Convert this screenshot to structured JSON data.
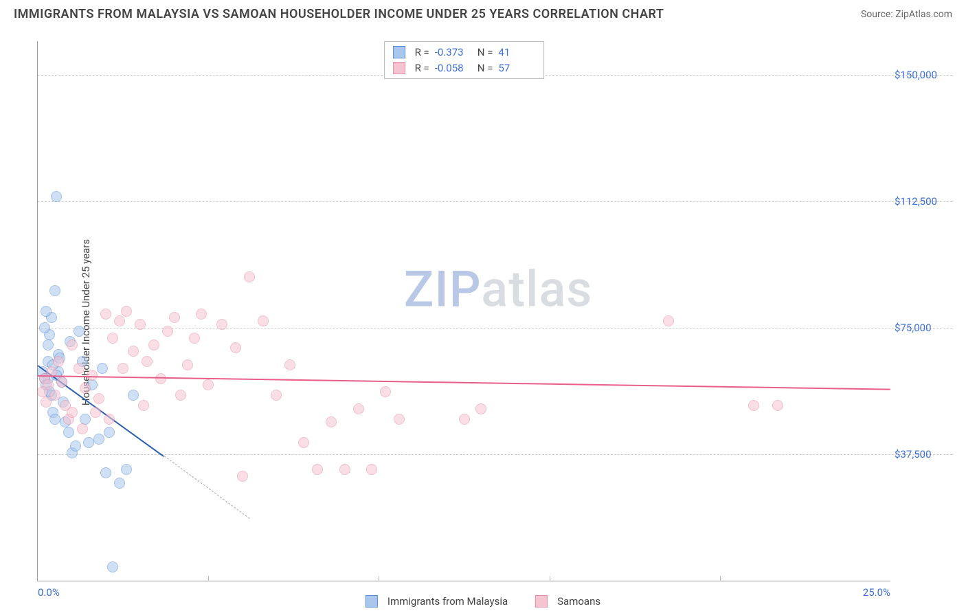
{
  "title": "IMMIGRANTS FROM MALAYSIA VS SAMOAN HOUSEHOLDER INCOME UNDER 25 YEARS CORRELATION CHART",
  "source": "Source: ZipAtlas.com",
  "ylabel": "Householder Income Under 25 years",
  "watermark": {
    "part1": "ZIP",
    "part2": "atlas"
  },
  "chart": {
    "type": "scatter",
    "background_color": "#ffffff",
    "grid_color": "#cccccc",
    "axis_color": "#999999",
    "label_color": "#3b6fd6",
    "title_fontsize": 18,
    "label_fontsize": 15,
    "xlim": [
      0,
      25
    ],
    "ylim": [
      0,
      160000
    ],
    "x_tick_labels": {
      "0": "0.0%",
      "25": "25.0%"
    },
    "x_minor_ticks": [
      5,
      10,
      15,
      20
    ],
    "y_ticks": [
      37500,
      75000,
      112500,
      150000
    ],
    "y_tick_labels": [
      "$37,500",
      "$75,000",
      "$112,500",
      "$150,000"
    ],
    "marker_radius": 8,
    "marker_opacity": 0.55,
    "series": [
      {
        "name": "Immigrants from Malaysia",
        "color_fill": "#a9c6ec",
        "color_stroke": "#5b8fd6",
        "r": -0.373,
        "n": 41,
        "trend": {
          "x1": 0,
          "y1": 64000,
          "x2": 3.7,
          "y2": 37000,
          "width": 2,
          "color": "#2a5db0",
          "dash_ext": {
            "x1": 3.7,
            "y1": 37000,
            "x2": 6.2,
            "y2": 18500
          }
        },
        "points": [
          [
            0.15,
            62000
          ],
          [
            0.2,
            60000
          ],
          [
            0.25,
            58000
          ],
          [
            0.3,
            65000
          ],
          [
            0.3,
            70000
          ],
          [
            0.35,
            73000
          ],
          [
            0.4,
            78000
          ],
          [
            0.4,
            55000
          ],
          [
            0.45,
            50000
          ],
          [
            0.5,
            48000
          ],
          [
            0.5,
            86000
          ],
          [
            0.55,
            114000
          ],
          [
            0.6,
            67000
          ],
          [
            0.6,
            62000
          ],
          [
            0.7,
            59000
          ],
          [
            0.75,
            53000
          ],
          [
            0.8,
            47000
          ],
          [
            0.9,
            44000
          ],
          [
            0.95,
            71000
          ],
          [
            1.0,
            38000
          ],
          [
            1.1,
            40000
          ],
          [
            1.2,
            74000
          ],
          [
            1.3,
            65000
          ],
          [
            1.5,
            41000
          ],
          [
            1.6,
            58000
          ],
          [
            1.8,
            42000
          ],
          [
            1.9,
            63000
          ],
          [
            2.0,
            32000
          ],
          [
            2.1,
            44000
          ],
          [
            2.4,
            29000
          ],
          [
            2.6,
            33000
          ],
          [
            2.8,
            55000
          ],
          [
            0.2,
            75000
          ],
          [
            0.25,
            80000
          ],
          [
            0.3,
            60000
          ],
          [
            0.35,
            56000
          ],
          [
            0.45,
            64000
          ],
          [
            0.55,
            61000
          ],
          [
            0.65,
            66000
          ],
          [
            1.4,
            48000
          ],
          [
            2.2,
            4000
          ]
        ]
      },
      {
        "name": "Samoans",
        "color_fill": "#f5c4d1",
        "color_stroke": "#e68fa8",
        "r": -0.058,
        "n": 57,
        "trend": {
          "x1": 0,
          "y1": 61000,
          "x2": 25,
          "y2": 57000,
          "width": 2,
          "color": "#e85f8a"
        },
        "points": [
          [
            0.2,
            60000
          ],
          [
            0.3,
            58000
          ],
          [
            0.4,
            62000
          ],
          [
            0.5,
            55000
          ],
          [
            0.6,
            65000
          ],
          [
            0.7,
            59000
          ],
          [
            0.8,
            52000
          ],
          [
            0.9,
            48000
          ],
          [
            1.0,
            50000
          ],
          [
            1.2,
            63000
          ],
          [
            1.4,
            57000
          ],
          [
            1.6,
            61000
          ],
          [
            1.8,
            54000
          ],
          [
            2.0,
            79000
          ],
          [
            2.2,
            72000
          ],
          [
            2.4,
            77000
          ],
          [
            2.6,
            80000
          ],
          [
            2.8,
            68000
          ],
          [
            3.0,
            76000
          ],
          [
            3.2,
            65000
          ],
          [
            3.4,
            70000
          ],
          [
            3.6,
            60000
          ],
          [
            3.8,
            74000
          ],
          [
            4.0,
            78000
          ],
          [
            4.2,
            55000
          ],
          [
            4.4,
            64000
          ],
          [
            4.6,
            72000
          ],
          [
            4.8,
            79000
          ],
          [
            5.0,
            58000
          ],
          [
            5.4,
            76000
          ],
          [
            5.8,
            69000
          ],
          [
            6.0,
            31000
          ],
          [
            6.2,
            90000
          ],
          [
            6.6,
            77000
          ],
          [
            7.0,
            55000
          ],
          [
            7.4,
            64000
          ],
          [
            7.8,
            41000
          ],
          [
            8.2,
            33000
          ],
          [
            8.6,
            47000
          ],
          [
            9.0,
            33000
          ],
          [
            9.4,
            51000
          ],
          [
            9.8,
            33000
          ],
          [
            10.2,
            56000
          ],
          [
            10.6,
            48000
          ],
          [
            12.5,
            48000
          ],
          [
            13.0,
            51000
          ],
          [
            18.5,
            77000
          ],
          [
            21.0,
            52000
          ],
          [
            21.7,
            52000
          ],
          [
            1.0,
            70000
          ],
          [
            1.3,
            45000
          ],
          [
            1.7,
            50000
          ],
          [
            2.1,
            48000
          ],
          [
            2.5,
            63000
          ],
          [
            3.1,
            52000
          ],
          [
            0.15,
            56000
          ],
          [
            0.25,
            53000
          ]
        ]
      }
    ],
    "stats_box": {
      "rows": [
        {
          "swatch_fill": "#a9c6ec",
          "swatch_stroke": "#5b8fd6",
          "r_label": "R =",
          "r": "-0.373",
          "n_label": "N =",
          "n": "41"
        },
        {
          "swatch_fill": "#f5c4d1",
          "swatch_stroke": "#e68fa8",
          "r_label": "R =",
          "r": "-0.058",
          "n_label": "N =",
          "n": "57"
        }
      ]
    },
    "bottom_legend": [
      {
        "swatch_fill": "#a9c6ec",
        "swatch_stroke": "#5b8fd6",
        "label": "Immigrants from Malaysia"
      },
      {
        "swatch_fill": "#f5c4d1",
        "swatch_stroke": "#e68fa8",
        "label": "Samoans"
      }
    ]
  }
}
